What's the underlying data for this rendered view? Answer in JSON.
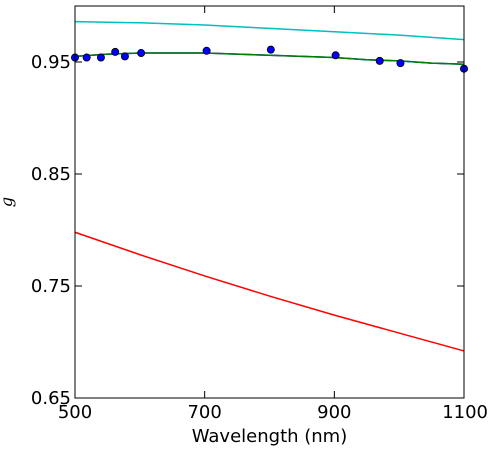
{
  "chart_data": {
    "type": "line",
    "title": "",
    "xlabel": "Wavelength (nm)",
    "ylabel": "g",
    "xlim": [
      500,
      1100
    ],
    "ylim": [
      0.65,
      1.0
    ],
    "xticks": [
      500,
      700,
      900,
      1100
    ],
    "xtick_labels": [
      "500",
      "700",
      "900",
      "1100"
    ],
    "yticks": [
      0.65,
      0.75,
      0.85,
      0.95
    ],
    "ytick_labels": [
      "0.65",
      "0.75",
      "0.85",
      "0.95"
    ],
    "grid": false,
    "legend": "none",
    "series": [
      {
        "kind": "line",
        "color": "#00bfbf",
        "x": [
          500,
          600,
          700,
          800,
          900,
          1000,
          1100
        ],
        "y": [
          0.986,
          0.985,
          0.983,
          0.98,
          0.977,
          0.974,
          0.97
        ]
      },
      {
        "kind": "line",
        "color": "#ff0000",
        "x": [
          500,
          600,
          700,
          800,
          900,
          1000,
          1100
        ],
        "y": [
          0.798,
          0.778,
          0.759,
          0.741,
          0.724,
          0.708,
          0.692
        ]
      },
      {
        "kind": "line",
        "color": "#0000ff",
        "x": [
          500,
          550,
          600,
          650,
          700,
          750,
          800,
          850,
          900,
          950,
          1000,
          1050,
          1100
        ],
        "y": [
          0.955,
          0.957,
          0.958,
          0.958,
          0.958,
          0.957,
          0.956,
          0.955,
          0.954,
          0.952,
          0.951,
          0.949,
          0.948
        ]
      },
      {
        "kind": "line",
        "color": "#008000",
        "x": [
          500,
          550,
          600,
          650,
          700,
          750,
          800,
          850,
          900,
          950,
          1000,
          1050,
          1100
        ],
        "y": [
          0.955,
          0.957,
          0.958,
          0.958,
          0.958,
          0.957,
          0.956,
          0.955,
          0.954,
          0.952,
          0.951,
          0.949,
          0.948
        ]
      },
      {
        "kind": "scatter",
        "color": "#0000ff",
        "x": [
          500,
          518,
          540,
          562,
          577,
          602,
          703,
          802,
          902,
          970,
          1002,
          1100
        ],
        "y": [
          0.954,
          0.954,
          0.954,
          0.959,
          0.955,
          0.958,
          0.96,
          0.961,
          0.956,
          0.951,
          0.949,
          0.944
        ]
      }
    ]
  }
}
